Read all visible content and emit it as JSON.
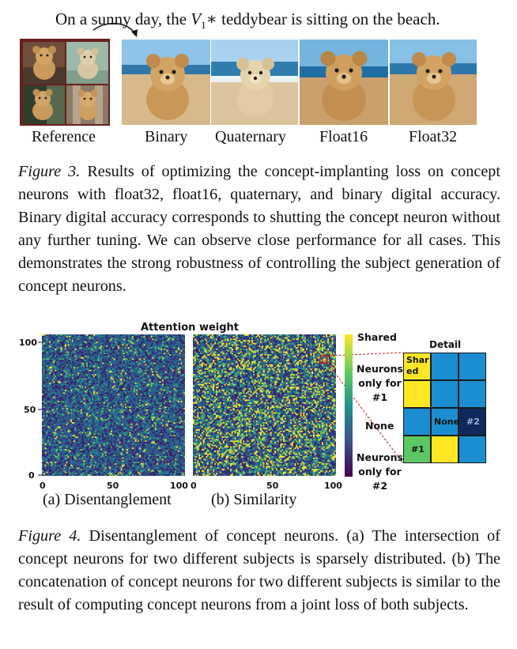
{
  "figure3": {
    "prompt_prefix": "On a sunny day, the ",
    "prompt_var": "V",
    "prompt_sub": "1",
    "prompt_star": "∗",
    "prompt_suffix": " teddybear is sitting on the beach.",
    "labels": [
      "Reference",
      "Binary",
      "Quaternary",
      "Float16",
      "Float32"
    ],
    "caption_label": "Figure 3.",
    "caption_text": " Results of optimizing the concept-implanting loss on concept neurons with float32, float16, quaternary, and binary digital accuracy. Binary digital accuracy corresponds to shutting the concept neuron without any further tuning. We can observe close performance for all cases.  This demonstrates the strong robustness of controlling the subject generation of concept neurons."
  },
  "figure4": {
    "plot_title": "Attention weight",
    "y_ticks": [
      "100",
      "50",
      "0"
    ],
    "x_ticks_a": [
      "0",
      "50",
      "100"
    ],
    "x_ticks_b": [
      "0",
      "50",
      "100"
    ],
    "subcaption_a": "(a) Disentanglement",
    "subcaption_b": "(b) Similarity",
    "colorbar_labels": {
      "shared": "Shared",
      "only1": "Neurons\nonly for\n#1",
      "none": "None",
      "only2": "Neurons\nonly for\n#2"
    },
    "detail_title": "Detail",
    "detail_cells": {
      "shared": "Shar\ned",
      "none": "None",
      "n2": "#2",
      "n1": "#1"
    },
    "colors": {
      "dark": "#3b1f6e",
      "teal": "#1f8a8a",
      "green": "#5cc863",
      "yellow": "#fde725",
      "blue": "#1b8ed1",
      "navy": "#0e2a5c"
    },
    "caption_label": "Figure 4.",
    "caption_text": " Disentanglement of concept neurons. (a) The intersection of concept neurons for two different subjects is sparsely distributed. (b) The concatenation of concept neurons for two different subjects is similar to the result of computing concept neurons from a joint loss of both subjects."
  }
}
